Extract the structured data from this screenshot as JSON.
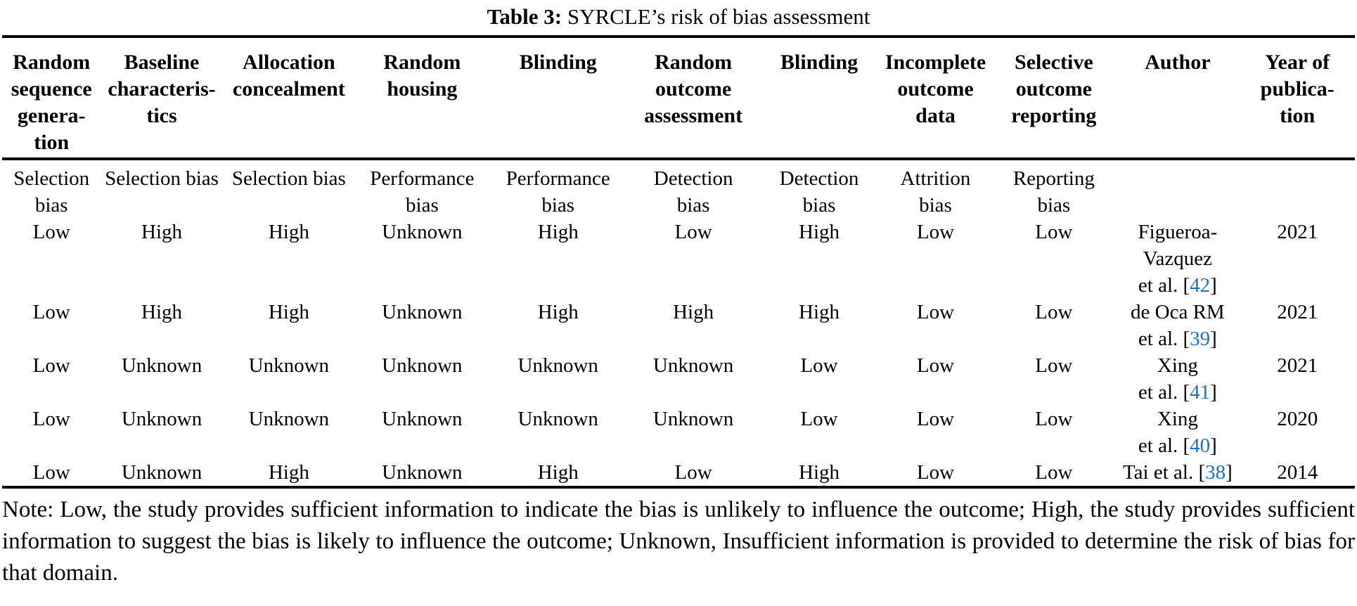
{
  "title": {
    "prefix": "Table 3:",
    "text": "SYRCLE’s risk of bias assessment"
  },
  "table": {
    "columns": [
      {
        "label": "Random sequence generation",
        "lines": [
          "Random",
          "sequence",
          "genera-",
          "tion"
        ]
      },
      {
        "label": "Baseline characteristics",
        "lines": [
          "Baseline",
          "characteris-",
          "tics"
        ]
      },
      {
        "label": "Allocation concealment",
        "lines": [
          "Allocation",
          "concealment"
        ]
      },
      {
        "label": "Random housing",
        "lines": [
          "Random",
          "housing"
        ]
      },
      {
        "label": "Blinding",
        "lines": [
          "Blinding"
        ]
      },
      {
        "label": "Random outcome assessment",
        "lines": [
          "Random",
          "outcome",
          "assessment"
        ]
      },
      {
        "label": "Blinding",
        "lines": [
          "Blinding"
        ]
      },
      {
        "label": "Incomplete outcome data",
        "lines": [
          "Incomplete",
          "outcome",
          "data"
        ]
      },
      {
        "label": "Selective outcome reporting",
        "lines": [
          "Selective",
          "outcome",
          "reporting"
        ]
      },
      {
        "label": "Author",
        "lines": [
          "Author"
        ]
      },
      {
        "label": "Year of publication",
        "lines": [
          "Year of",
          "publica-",
          "tion"
        ]
      }
    ],
    "bias_row": [
      {
        "label": "Selection bias",
        "lines": [
          "Selection",
          "bias"
        ]
      },
      {
        "label": "Selection bias",
        "lines": [
          "Selection bias"
        ]
      },
      {
        "label": "Selection bias",
        "lines": [
          "Selection bias"
        ]
      },
      {
        "label": "Performance bias",
        "lines": [
          "Performance",
          "bias"
        ]
      },
      {
        "label": "Performance bias",
        "lines": [
          "Performance",
          "bias"
        ]
      },
      {
        "label": "Detection bias",
        "lines": [
          "Detection",
          "bias"
        ]
      },
      {
        "label": "Detection bias",
        "lines": [
          "Detection",
          "bias"
        ]
      },
      {
        "label": "Attrition bias",
        "lines": [
          "Attrition",
          "bias"
        ]
      },
      {
        "label": "Reporting bias",
        "lines": [
          "Reporting",
          "bias"
        ]
      },
      {
        "label": "",
        "lines": []
      },
      {
        "label": "",
        "lines": []
      }
    ],
    "rows": [
      {
        "values": [
          "Low",
          "High",
          "High",
          "Unknown",
          "High",
          "Low",
          "High",
          "Low",
          "Low"
        ],
        "author_lines": [
          "Figueroa-",
          "Vazquez",
          "et al. [42]"
        ],
        "citation": "42",
        "year": "2021"
      },
      {
        "values": [
          "Low",
          "High",
          "High",
          "Unknown",
          "High",
          "High",
          "High",
          "Low",
          "Low"
        ],
        "author_lines": [
          "de Oca RM",
          "et al. [39]"
        ],
        "citation": "39",
        "year": "2021"
      },
      {
        "values": [
          "Low",
          "Unknown",
          "Unknown",
          "Unknown",
          "Unknown",
          "Unknown",
          "Low",
          "Low",
          "Low"
        ],
        "author_lines": [
          "Xing",
          "et al. [41]"
        ],
        "citation": "41",
        "year": "2021"
      },
      {
        "values": [
          "Low",
          "Unknown",
          "Unknown",
          "Unknown",
          "Unknown",
          "Unknown",
          "Low",
          "Low",
          "Low"
        ],
        "author_lines": [
          "Xing",
          "et al. [40]"
        ],
        "citation": "40",
        "year": "2020"
      },
      {
        "values": [
          "Low",
          "Unknown",
          "High",
          "Unknown",
          "High",
          "Low",
          "High",
          "Low",
          "Low"
        ],
        "author_lines": [
          "Tai et al. [38]"
        ],
        "citation": "38",
        "year": "2014"
      }
    ]
  },
  "note": "Note: Low, the study provides sufficient information to indicate the bias is unlikely to influence the outcome; High, the study provides sufficient information to suggest the bias is likely to influence the outcome; Unknown, Insufficient information is provided to determine the risk of bias for that domain.",
  "colors": {
    "citation_link": "#1e6fc8",
    "text": "#000000",
    "background": "#ffffff",
    "rule": "#000000"
  }
}
